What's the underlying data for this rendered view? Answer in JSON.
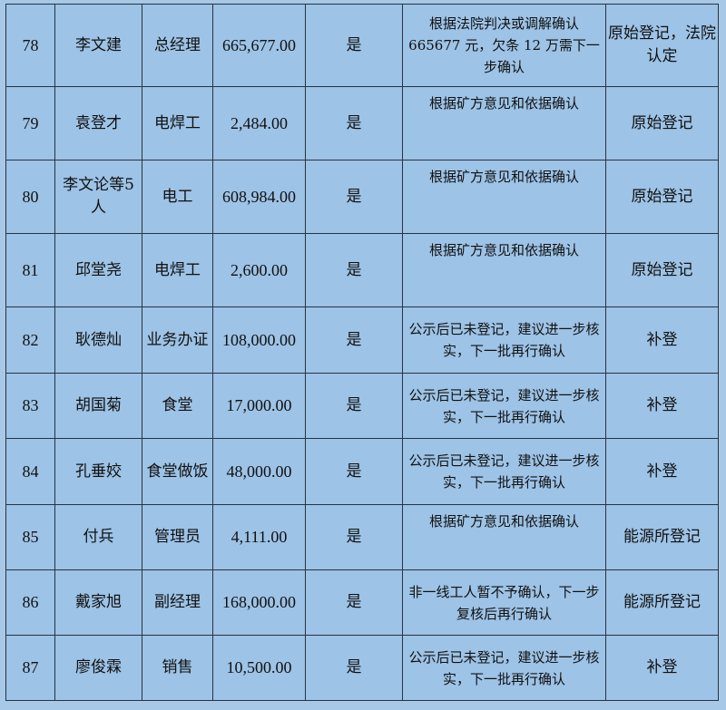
{
  "rows": [
    {
      "no": "78",
      "name": "李文建",
      "job": "总经理",
      "amount": "665,677.00",
      "confirmed": "是",
      "note": "根据法院判决或调解确认665677 元，欠条 12 万需下一步确认",
      "source": "原始登记，法院认定"
    },
    {
      "no": "79",
      "name": "袁登才",
      "job": "电焊工",
      "amount": "2,484.00",
      "confirmed": "是",
      "note": "根据矿方意见和依据确认",
      "source": "原始登记"
    },
    {
      "no": "80",
      "name": "李文论等5人",
      "job": "电工",
      "amount": "608,984.00",
      "confirmed": "是",
      "note": "根据矿方意见和依据确认",
      "source": "原始登记"
    },
    {
      "no": "81",
      "name": "邱堂尧",
      "job": "电焊工",
      "amount": "2,600.00",
      "confirmed": "是",
      "note": "根据矿方意见和依据确认",
      "source": "原始登记"
    },
    {
      "no": "82",
      "name": "耿德灿",
      "job": "业务办证",
      "amount": "108,000.00",
      "confirmed": "是",
      "note": "公示后已未登记，建议进一步核实，下一批再行确认",
      "source": "补登"
    },
    {
      "no": "83",
      "name": "胡国菊",
      "job": "食堂",
      "amount": "17,000.00",
      "confirmed": "是",
      "note": "公示后已未登记，建议进一步核实，下一批再行确认",
      "source": "补登"
    },
    {
      "no": "84",
      "name": "孔垂姣",
      "job": "食堂做饭",
      "amount": "48,000.00",
      "confirmed": "是",
      "note": "公示后已未登记，建议进一步核实，下一批再行确认",
      "source": "补登"
    },
    {
      "no": "85",
      "name": "付兵",
      "job": "管理员",
      "amount": "4,111.00",
      "confirmed": "是",
      "note": "根据矿方意见和依据确认",
      "source": "能源所登记"
    },
    {
      "no": "86",
      "name": "戴家旭",
      "job": "副经理",
      "amount": "168,000.00",
      "confirmed": "是",
      "note": "非一线工人暂不予确认，下一步复核后再行确认",
      "source": "能源所登记"
    },
    {
      "no": "87",
      "name": "廖俊霖",
      "job": "销售",
      "amount": "10,500.00",
      "confirmed": "是",
      "note": "公示后已未登记，建议进一步核实，下一批再行确认",
      "source": "补登"
    }
  ]
}
